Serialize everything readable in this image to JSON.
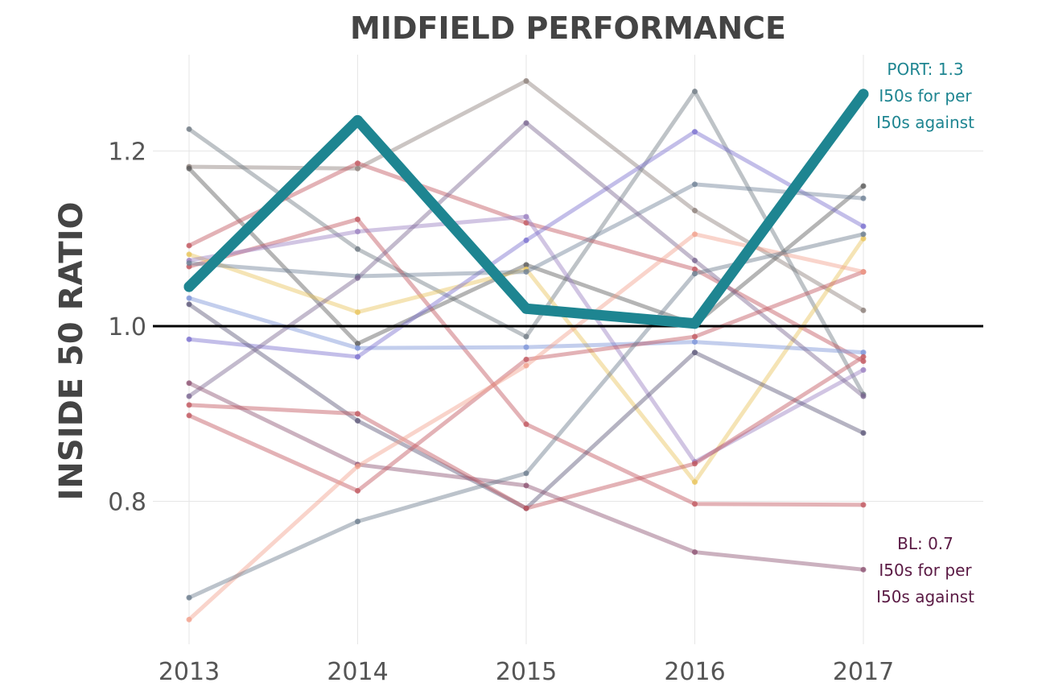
{
  "chart_data": {
    "type": "line",
    "title": "MIDFIELD PERFORMANCE",
    "xlabel": "",
    "ylabel": "INSIDE 50 RATIO",
    "x": [
      "2013",
      "2014",
      "2015",
      "2016",
      "2017"
    ],
    "yticks": [
      "0.8",
      "1.0",
      "1.2"
    ],
    "ylim": [
      0.63,
      1.32
    ],
    "grid": true,
    "reference_line": 1.0,
    "highlight_series": {
      "values": [
        1.045,
        1.235,
        1.02,
        1.003,
        1.265
      ],
      "color": "#1e8591"
    },
    "series": [
      {
        "values": [
          1.182,
          1.18,
          1.28,
          1.132,
          1.018
        ],
        "color": "#8c7f7a"
      },
      {
        "values": [
          1.225,
          1.088,
          0.988,
          1.268,
          0.922
        ],
        "color": "#6f7a83"
      },
      {
        "values": [
          1.18,
          0.98,
          1.07,
          1.002,
          1.16
        ],
        "color": "#5b5b5b"
      },
      {
        "values": [
          1.092,
          1.186,
          1.118,
          1.065,
          0.96
        ],
        "color": "#c0555d"
      },
      {
        "values": [
          1.068,
          1.122,
          0.888,
          0.797,
          0.796
        ],
        "color": "#c0555d"
      },
      {
        "values": [
          1.082,
          1.016,
          1.065,
          0.822,
          1.1
        ],
        "color": "#e8c45a"
      },
      {
        "values": [
          1.075,
          1.108,
          1.125,
          0.845,
          0.95
        ],
        "color": "#9a7fc0"
      },
      {
        "values": [
          1.032,
          0.975,
          0.976,
          0.982,
          0.97
        ],
        "color": "#7b93d8"
      },
      {
        "values": [
          0.985,
          0.965,
          1.098,
          1.222,
          1.114
        ],
        "color": "#7a6fcf"
      },
      {
        "values": [
          1.072,
          1.057,
          1.062,
          1.162,
          1.146
        ],
        "color": "#6e8096"
      },
      {
        "values": [
          1.025,
          0.892,
          0.792,
          0.97,
          0.878
        ],
        "color": "#5c5778"
      },
      {
        "values": [
          0.92,
          1.055,
          1.232,
          1.075,
          0.92
        ],
        "color": "#7a6690"
      },
      {
        "values": [
          0.935,
          0.842,
          0.818,
          0.742,
          0.722
        ],
        "color": "#8c5272"
      },
      {
        "values": [
          0.91,
          0.9,
          0.792,
          0.843,
          0.965
        ],
        "color": "#c0555d"
      },
      {
        "values": [
          0.898,
          0.812,
          0.962,
          0.988,
          1.062
        ],
        "color": "#c0555d"
      },
      {
        "values": [
          0.665,
          0.84,
          0.955,
          1.105,
          1.062
        ],
        "color": "#f2a08c"
      },
      {
        "values": [
          0.69,
          0.777,
          0.832,
          1.06,
          1.105
        ],
        "color": "#6a7b8c"
      }
    ],
    "annotations": [
      {
        "lines": [
          "PORT: 1.3",
          "I50s for per",
          "I50s against"
        ],
        "color": "#1e8591"
      },
      {
        "lines": [
          "BL: 0.7",
          "I50s for per",
          "I50s against"
        ],
        "color": "#5a1a44"
      }
    ]
  }
}
